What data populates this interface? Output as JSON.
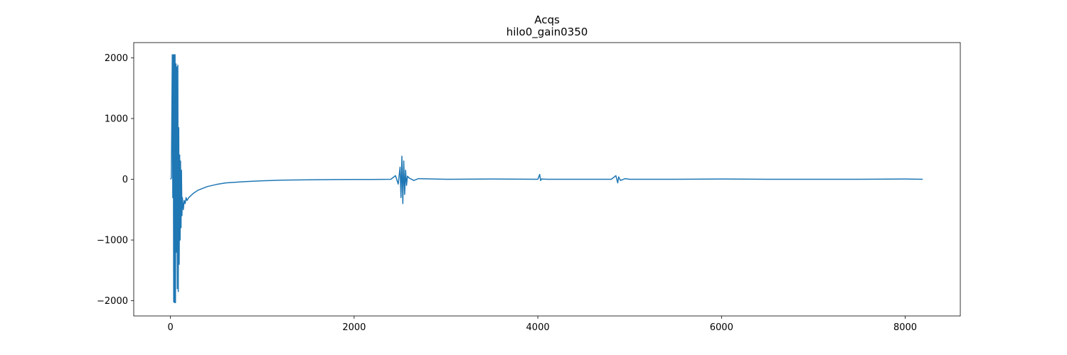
{
  "chart_data": {
    "type": "line",
    "title": "Acqs",
    "subtitle": "hilo0_gain0350",
    "xlabel": "",
    "ylabel": "",
    "xlim": [
      -400,
      8600
    ],
    "ylim": [
      -2250,
      2250
    ],
    "x_ticks": [
      0,
      2000,
      4000,
      6000,
      8000
    ],
    "y_ticks": [
      -2000,
      -1000,
      0,
      1000,
      2000
    ],
    "x_tick_labels": [
      "0",
      "2000",
      "4000",
      "6000",
      "8000"
    ],
    "y_tick_labels": [
      "−2000",
      "−1000",
      "0",
      "1000",
      "2000"
    ],
    "grid": false,
    "legend": "none",
    "series": [
      {
        "color": "#1f77b4",
        "n_samples": 8192,
        "x": [
          0,
          10,
          20,
          25,
          30,
          35,
          40,
          45,
          50,
          55,
          60,
          65,
          70,
          75,
          80,
          85,
          90,
          95,
          100,
          105,
          110,
          115,
          120,
          125,
          130,
          140,
          150,
          160,
          170,
          180,
          200,
          250,
          300,
          400,
          500,
          600,
          800,
          1000,
          1200,
          1500,
          1800,
          2000,
          2200,
          2400,
          2450,
          2480,
          2500,
          2510,
          2520,
          2530,
          2540,
          2550,
          2560,
          2570,
          2580,
          2600,
          2650,
          2700,
          3000,
          3500,
          4000,
          4020,
          4030,
          4040,
          4100,
          4500,
          4800,
          4850,
          4870,
          4880,
          4900,
          4950,
          5000,
          5500,
          6000,
          6500,
          7000,
          7500,
          8000,
          8191
        ],
        "y": [
          0,
          20,
          2050,
          -300,
          2050,
          -2020,
          2050,
          -2030,
          2050,
          -2030,
          1900,
          -1200,
          1850,
          -1800,
          1880,
          -1850,
          850,
          -1400,
          400,
          -1000,
          300,
          -800,
          150,
          -600,
          -300,
          -500,
          -350,
          -400,
          -300,
          -350,
          -300,
          -230,
          -180,
          -120,
          -85,
          -60,
          -40,
          -25,
          -15,
          -8,
          -5,
          -3,
          -2,
          0,
          60,
          -80,
          200,
          -300,
          380,
          -400,
          300,
          -250,
          150,
          -100,
          50,
          20,
          -20,
          10,
          0,
          5,
          0,
          80,
          -20,
          5,
          0,
          0,
          0,
          60,
          -60,
          40,
          -20,
          10,
          0,
          0,
          5,
          0,
          0,
          0,
          5,
          0
        ]
      }
    ]
  }
}
